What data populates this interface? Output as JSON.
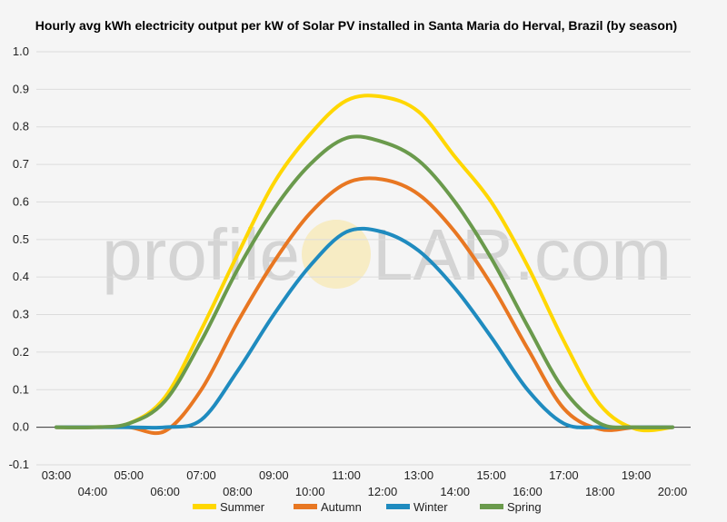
{
  "chart_data": {
    "type": "line",
    "title": "Hourly avg kWh electricity output per kW of Solar PV installed in Santa Maria do Herval, Brazil (by season)",
    "watermark": {
      "left": "profile",
      "right": "LAR.com"
    },
    "ylim": [
      -0.1,
      1.0
    ],
    "yticks": [
      "1.0",
      "0.9",
      "0.8",
      "0.7",
      "0.6",
      "0.5",
      "0.4",
      "0.3",
      "0.2",
      "0.1",
      "0.0",
      "-0.1"
    ],
    "categories": [
      "03:00",
      "04:00",
      "05:00",
      "06:00",
      "07:00",
      "08:00",
      "09:00",
      "10:00",
      "11:00",
      "12:00",
      "13:00",
      "14:00",
      "15:00",
      "16:00",
      "17:00",
      "18:00",
      "19:00",
      "20:00"
    ],
    "grid": true,
    "legend_position": "bottom",
    "series": [
      {
        "name": "Summer",
        "color": "#FFD700",
        "values": [
          0,
          0,
          0.01,
          0.08,
          0.26,
          0.46,
          0.65,
          0.78,
          0.87,
          0.88,
          0.84,
          0.72,
          0.6,
          0.43,
          0.23,
          0.06,
          -0.005,
          0
        ]
      },
      {
        "name": "Autumn",
        "color": "#E87722",
        "values": [
          0,
          0,
          0,
          -0.01,
          0.1,
          0.28,
          0.44,
          0.57,
          0.65,
          0.66,
          0.62,
          0.52,
          0.38,
          0.21,
          0.05,
          -0.005,
          0,
          0
        ]
      },
      {
        "name": "Winter",
        "color": "#1F8BBF",
        "values": [
          0,
          0,
          0,
          0,
          0.02,
          0.15,
          0.3,
          0.43,
          0.52,
          0.52,
          0.47,
          0.37,
          0.24,
          0.1,
          0.01,
          0,
          0,
          0
        ]
      },
      {
        "name": "Spring",
        "color": "#6A9A4C",
        "values": [
          0,
          0,
          0.01,
          0.07,
          0.23,
          0.42,
          0.58,
          0.7,
          0.77,
          0.76,
          0.71,
          0.6,
          0.45,
          0.27,
          0.1,
          0.01,
          0,
          0
        ]
      }
    ]
  }
}
